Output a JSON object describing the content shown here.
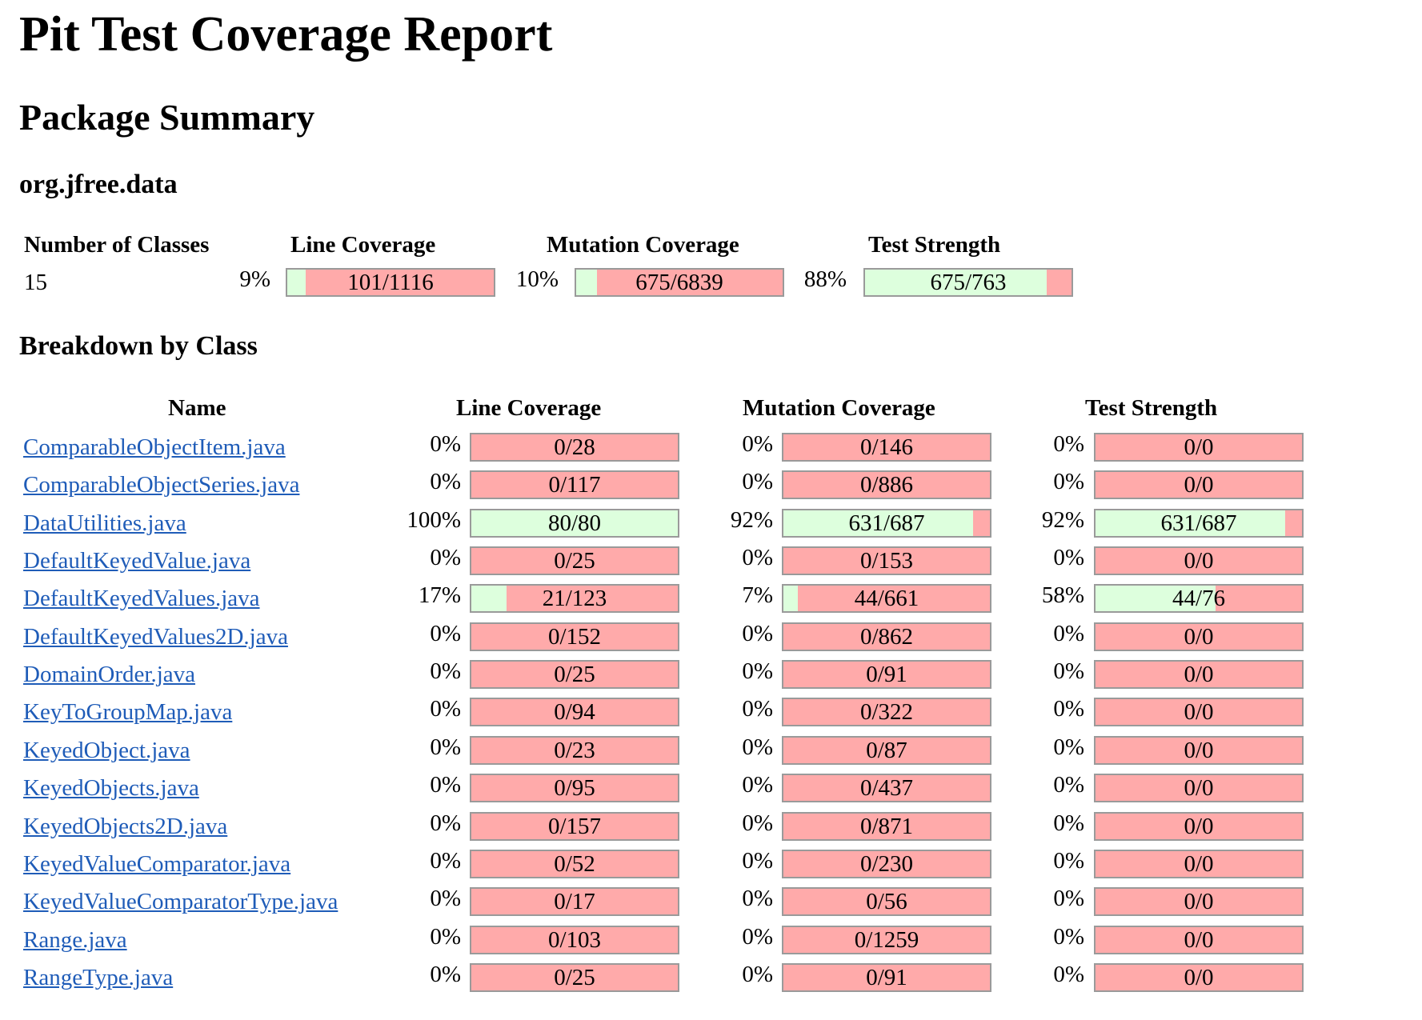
{
  "title": "Pit Test Coverage Report",
  "section_title": "Package Summary",
  "package_name": "org.jfree.data",
  "breakdown_title": "Breakdown by Class",
  "summary": {
    "headers": {
      "classes": "Number of Classes",
      "line": "Line Coverage",
      "mutation": "Mutation Coverage",
      "strength": "Test Strength"
    },
    "num_classes": "15",
    "line": {
      "pct": "9%",
      "label": "101/1116",
      "fraction": 0.09
    },
    "mutation": {
      "pct": "10%",
      "label": "675/6839",
      "fraction": 0.1
    },
    "strength": {
      "pct": "88%",
      "label": "675/763",
      "fraction": 0.88
    }
  },
  "table": {
    "headers": {
      "name": "Name",
      "line": "Line Coverage",
      "mutation": "Mutation Coverage",
      "strength": "Test Strength"
    },
    "rows": [
      {
        "name": "ComparableObjectItem.java",
        "line": {
          "pct": "0%",
          "label": "0/28",
          "fraction": 0
        },
        "mutation": {
          "pct": "0%",
          "label": "0/146",
          "fraction": 0
        },
        "strength": {
          "pct": "0%",
          "label": "0/0",
          "fraction": 0
        }
      },
      {
        "name": "ComparableObjectSeries.java",
        "line": {
          "pct": "0%",
          "label": "0/117",
          "fraction": 0
        },
        "mutation": {
          "pct": "0%",
          "label": "0/886",
          "fraction": 0
        },
        "strength": {
          "pct": "0%",
          "label": "0/0",
          "fraction": 0
        }
      },
      {
        "name": "DataUtilities.java",
        "line": {
          "pct": "100%",
          "label": "80/80",
          "fraction": 1.0
        },
        "mutation": {
          "pct": "92%",
          "label": "631/687",
          "fraction": 0.92
        },
        "strength": {
          "pct": "92%",
          "label": "631/687",
          "fraction": 0.92
        }
      },
      {
        "name": "DefaultKeyedValue.java",
        "line": {
          "pct": "0%",
          "label": "0/25",
          "fraction": 0
        },
        "mutation": {
          "pct": "0%",
          "label": "0/153",
          "fraction": 0
        },
        "strength": {
          "pct": "0%",
          "label": "0/0",
          "fraction": 0
        }
      },
      {
        "name": "DefaultKeyedValues.java",
        "line": {
          "pct": "17%",
          "label": "21/123",
          "fraction": 0.17
        },
        "mutation": {
          "pct": "7%",
          "label": "44/661",
          "fraction": 0.07
        },
        "strength": {
          "pct": "58%",
          "label": "44/76",
          "fraction": 0.58
        }
      },
      {
        "name": "DefaultKeyedValues2D.java",
        "line": {
          "pct": "0%",
          "label": "0/152",
          "fraction": 0
        },
        "mutation": {
          "pct": "0%",
          "label": "0/862",
          "fraction": 0
        },
        "strength": {
          "pct": "0%",
          "label": "0/0",
          "fraction": 0
        }
      },
      {
        "name": "DomainOrder.java",
        "line": {
          "pct": "0%",
          "label": "0/25",
          "fraction": 0
        },
        "mutation": {
          "pct": "0%",
          "label": "0/91",
          "fraction": 0
        },
        "strength": {
          "pct": "0%",
          "label": "0/0",
          "fraction": 0
        }
      },
      {
        "name": "KeyToGroupMap.java",
        "line": {
          "pct": "0%",
          "label": "0/94",
          "fraction": 0
        },
        "mutation": {
          "pct": "0%",
          "label": "0/322",
          "fraction": 0
        },
        "strength": {
          "pct": "0%",
          "label": "0/0",
          "fraction": 0
        }
      },
      {
        "name": "KeyedObject.java",
        "line": {
          "pct": "0%",
          "label": "0/23",
          "fraction": 0
        },
        "mutation": {
          "pct": "0%",
          "label": "0/87",
          "fraction": 0
        },
        "strength": {
          "pct": "0%",
          "label": "0/0",
          "fraction": 0
        }
      },
      {
        "name": "KeyedObjects.java",
        "line": {
          "pct": "0%",
          "label": "0/95",
          "fraction": 0
        },
        "mutation": {
          "pct": "0%",
          "label": "0/437",
          "fraction": 0
        },
        "strength": {
          "pct": "0%",
          "label": "0/0",
          "fraction": 0
        }
      },
      {
        "name": "KeyedObjects2D.java",
        "line": {
          "pct": "0%",
          "label": "0/157",
          "fraction": 0
        },
        "mutation": {
          "pct": "0%",
          "label": "0/871",
          "fraction": 0
        },
        "strength": {
          "pct": "0%",
          "label": "0/0",
          "fraction": 0
        }
      },
      {
        "name": "KeyedValueComparator.java",
        "line": {
          "pct": "0%",
          "label": "0/52",
          "fraction": 0
        },
        "mutation": {
          "pct": "0%",
          "label": "0/230",
          "fraction": 0
        },
        "strength": {
          "pct": "0%",
          "label": "0/0",
          "fraction": 0
        }
      },
      {
        "name": "KeyedValueComparatorType.java",
        "line": {
          "pct": "0%",
          "label": "0/17",
          "fraction": 0
        },
        "mutation": {
          "pct": "0%",
          "label": "0/56",
          "fraction": 0
        },
        "strength": {
          "pct": "0%",
          "label": "0/0",
          "fraction": 0
        }
      },
      {
        "name": "Range.java",
        "line": {
          "pct": "0%",
          "label": "0/103",
          "fraction": 0
        },
        "mutation": {
          "pct": "0%",
          "label": "0/1259",
          "fraction": 0
        },
        "strength": {
          "pct": "0%",
          "label": "0/0",
          "fraction": 0
        }
      },
      {
        "name": "RangeType.java",
        "line": {
          "pct": "0%",
          "label": "0/25",
          "fraction": 0
        },
        "mutation": {
          "pct": "0%",
          "label": "0/91",
          "fraction": 0
        },
        "strength": {
          "pct": "0%",
          "label": "0/0",
          "fraction": 0
        }
      }
    ]
  },
  "colors": {
    "covered": "#ddffdd",
    "uncovered": "#ffaaaa",
    "link": "#1f5cb8",
    "bar_border": "#9a9a9a"
  }
}
